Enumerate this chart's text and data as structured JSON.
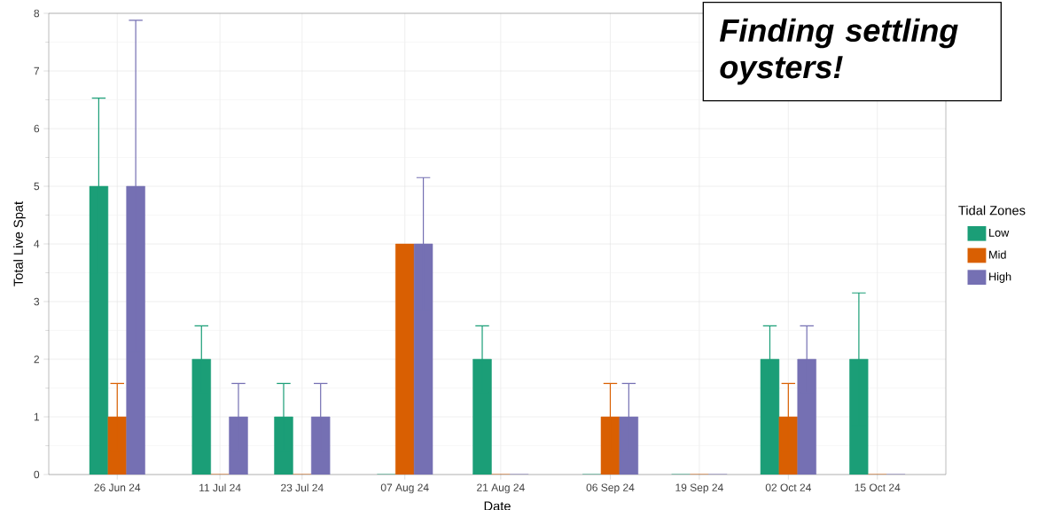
{
  "chart_data": {
    "type": "bar",
    "xlabel": "Date",
    "ylabel": "Total Live Spat",
    "legend_title": "Tidal Zones",
    "annotations": [
      "Finding settling oysters!"
    ],
    "x": [
      "2024-06-26",
      "2024-07-11",
      "2024-07-23",
      "2024-08-07",
      "2024-08-21",
      "2024-09-06",
      "2024-09-19",
      "2024-10-02",
      "2024-10-15"
    ],
    "xlim": [
      "2024-06-16",
      "2024-10-25"
    ],
    "xticks": [
      {
        "value": "2024-06-26",
        "label": "26 Jun 24"
      },
      {
        "value": "2024-07-11",
        "label": "11 Jul 24"
      },
      {
        "value": "2024-07-23",
        "label": "23 Jul 24"
      },
      {
        "value": "2024-08-07",
        "label": "07 Aug 24"
      },
      {
        "value": "2024-08-21",
        "label": "21 Aug 24"
      },
      {
        "value": "2024-09-06",
        "label": "06 Sep 24"
      },
      {
        "value": "2024-09-19",
        "label": "19 Sep 24"
      },
      {
        "value": "2024-10-02",
        "label": "02 Oct 24"
      },
      {
        "value": "2024-10-15",
        "label": "15 Oct 24"
      }
    ],
    "ylim": [
      0,
      8
    ],
    "yticks": [
      0,
      1,
      2,
      3,
      4,
      5,
      6,
      7,
      8
    ],
    "series": [
      {
        "name": "Low",
        "color": "#1b9e77",
        "values": [
          5,
          2,
          1,
          0,
          2,
          0,
          0,
          2,
          2
        ],
        "errors": [
          1.53,
          0.58,
          0.58,
          null,
          0.58,
          null,
          null,
          0.58,
          1.15
        ]
      },
      {
        "name": "Mid",
        "color": "#d95f02",
        "values": [
          1,
          0,
          0,
          4,
          0,
          1,
          0,
          1,
          0
        ],
        "errors": [
          0.58,
          null,
          null,
          null,
          null,
          0.58,
          null,
          0.58,
          null
        ]
      },
      {
        "name": "High",
        "color": "#7570b3",
        "values": [
          5,
          1,
          1,
          4,
          0,
          1,
          0,
          2,
          0
        ],
        "errors": [
          2.88,
          0.58,
          0.58,
          1.15,
          null,
          0.58,
          null,
          0.58,
          null
        ]
      }
    ],
    "grid": true,
    "legend": "right"
  }
}
